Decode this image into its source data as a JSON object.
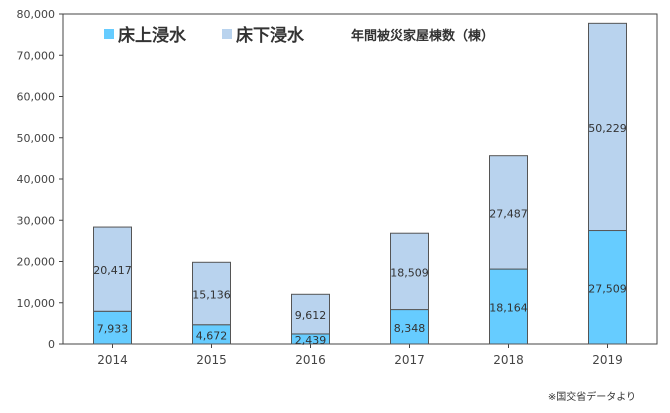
{
  "chart_data": {
    "type": "bar",
    "stacked": true,
    "title": "年間被災家屋棟数（棟）",
    "categories": [
      "2014",
      "2015",
      "2016",
      "2017",
      "2018",
      "2019"
    ],
    "series": [
      {
        "name": "床上浸水",
        "color": "#66ccff",
        "values": [
          7933,
          4672,
          2439,
          8348,
          18164,
          27509
        ],
        "labels": [
          "7,933",
          "4,672",
          "2,439",
          "8,348",
          "18,164",
          "27,509"
        ]
      },
      {
        "name": "床下浸水",
        "color": "#b9d3ee",
        "values": [
          20417,
          15136,
          9612,
          18509,
          27487,
          50229
        ],
        "labels": [
          "20,417",
          "15,136",
          "9,612",
          "18,509",
          "27,487",
          "50,229"
        ]
      }
    ],
    "ylim": [
      0,
      80000
    ],
    "yticks": [
      0,
      10000,
      20000,
      30000,
      40000,
      50000,
      60000,
      70000,
      80000
    ],
    "ytick_labels": [
      "0",
      "10,000",
      "20,000",
      "30,000",
      "40,000",
      "50,000",
      "60,000",
      "70,000",
      "80,000"
    ],
    "grid": false,
    "legend": "top-left",
    "source_note": "※国交省データより"
  }
}
